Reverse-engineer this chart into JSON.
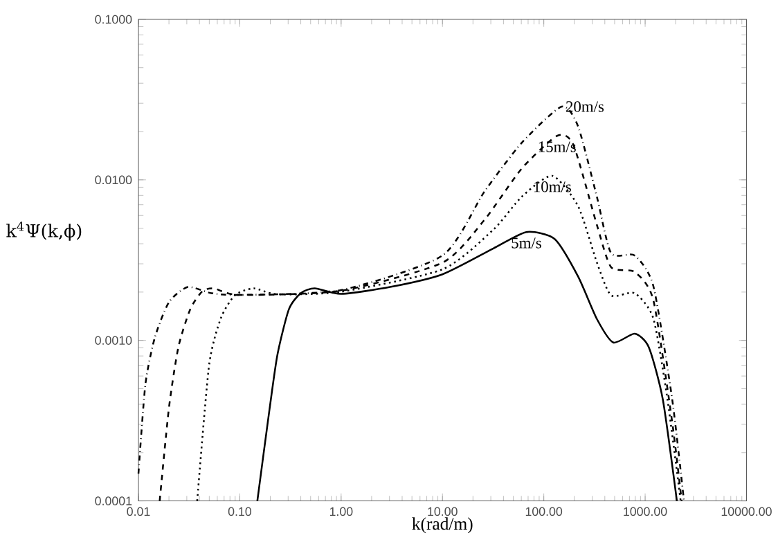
{
  "chart_data": {
    "type": "line",
    "xlabel": "k(rad/m)",
    "ylabel": "k$^{4}$Ψ(k,ϕ)",
    "log": "xy",
    "xlim": [
      0.01,
      10000
    ],
    "ylim": [
      0.0001,
      0.1
    ],
    "xticks": [
      {
        "value": 0.01,
        "label": "0.01"
      },
      {
        "value": 0.1,
        "label": "0.10"
      },
      {
        "value": 1,
        "label": "1.00"
      },
      {
        "value": 10,
        "label": "10.00"
      },
      {
        "value": 100,
        "label": "100.00"
      },
      {
        "value": 1000,
        "label": "1000.00"
      },
      {
        "value": 10000,
        "label": "10000.00"
      }
    ],
    "yticks": [
      {
        "value": 0.0001,
        "label": "0.0001"
      },
      {
        "value": 0.001,
        "label": "0.0010"
      },
      {
        "value": 0.01,
        "label": "0.0100"
      },
      {
        "value": 0.1,
        "label": "0.1000"
      }
    ],
    "grid": false,
    "series": [
      {
        "name": "5m/s",
        "color": "#000000",
        "line_style": "solid",
        "x": [
          0.149,
          0.189,
          0.234,
          0.305,
          0.4,
          0.55,
          1,
          3.04,
          10,
          31.8,
          67.3,
          128,
          218,
          334,
          486,
          787,
          1084,
          1493,
          2057
        ],
        "values": [
          0.0001,
          0.00031,
          0.0008,
          0.00156,
          0.00197,
          0.00211,
          0.00195,
          0.00215,
          0.00258,
          0.00374,
          0.00473,
          0.00428,
          0.0025,
          0.00136,
          0.00097,
          0.0011,
          0.00091,
          0.00043,
          0.0001
        ]
      },
      {
        "name": "10m/s",
        "color": "#000000",
        "line_style": "dotted",
        "x": [
          0.038,
          0.0497,
          0.0649,
          0.0894,
          0.137,
          0.234,
          1,
          10,
          31.8,
          60.5,
          121,
          218,
          334,
          461,
          787,
          1205,
          1660,
          2240
        ],
        "values": [
          0.0001,
          0.000695,
          0.00137,
          0.00191,
          0.00211,
          0.00194,
          0.00201,
          0.00277,
          0.0049,
          0.00785,
          0.0106,
          0.00686,
          0.00306,
          0.00191,
          0.00197,
          0.00137,
          0.00043,
          0.0001
        ]
      },
      {
        "name": "15m/s",
        "color": "#000000",
        "line_style": "dashed",
        "x": [
          0.0162,
          0.02,
          0.0248,
          0.0324,
          0.0423,
          0.0552,
          0.1,
          1,
          10,
          25.8,
          60.5,
          135,
          196,
          334,
          461,
          787,
          1205,
          1849,
          2291
        ],
        "values": [
          0.0001,
          0.00038,
          0.00091,
          0.00156,
          0.00201,
          0.00211,
          0.00192,
          0.00204,
          0.00305,
          0.00561,
          0.01175,
          0.0188,
          0.0165,
          0.00524,
          0.00286,
          0.00267,
          0.00178,
          0.00031,
          0.0001
        ]
      },
      {
        "name": "20m/s",
        "color": "#000000",
        "line_style": "dashdot",
        "x": [
          0.01,
          0.0117,
          0.0145,
          0.02,
          0.0307,
          0.0524,
          0.1,
          1,
          10,
          25.8,
          60.5,
          150,
          218,
          334,
          461,
          787,
          1205,
          1849,
          2415
        ],
        "values": [
          0.000148,
          0.00053,
          0.00104,
          0.00173,
          0.00215,
          0.00197,
          0.00192,
          0.00206,
          0.00338,
          0.0084,
          0.017,
          0.0286,
          0.0215,
          0.00785,
          0.0035,
          0.00338,
          0.00218,
          0.00043,
          0.0001
        ]
      }
    ]
  }
}
